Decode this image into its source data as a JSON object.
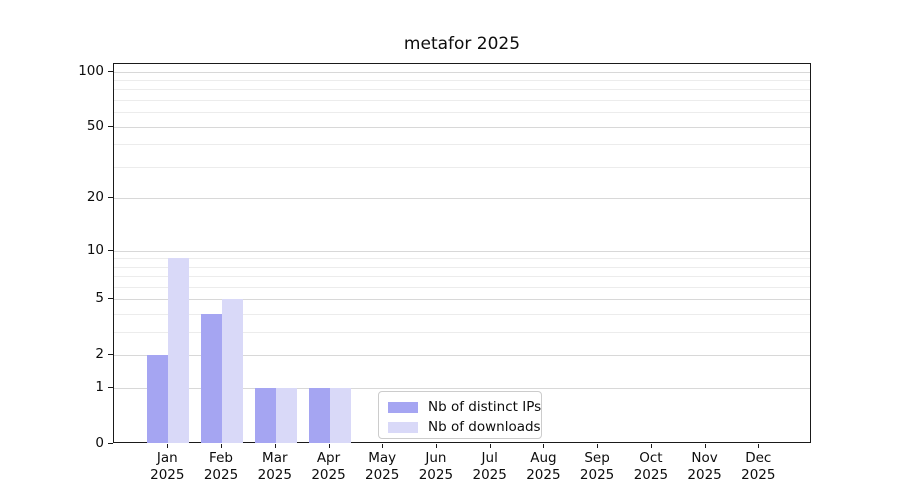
{
  "chart_data": {
    "type": "bar",
    "title": "metafor 2025",
    "categories": [
      "Jan",
      "Feb",
      "Mar",
      "Apr",
      "May",
      "Jun",
      "Jul",
      "Aug",
      "Sep",
      "Oct",
      "Nov",
      "Dec"
    ],
    "x_year_label": "2025",
    "series": [
      {
        "name": "Nb of distinct IPs",
        "color": "#a5a5f2",
        "values": [
          2,
          4,
          1,
          1,
          0,
          0,
          0,
          0,
          0,
          0,
          0,
          0
        ]
      },
      {
        "name": "Nb of downloads",
        "color": "#d9d9f8",
        "values": [
          9,
          5,
          1,
          1,
          0,
          0,
          0,
          0,
          0,
          0,
          0,
          0
        ]
      }
    ],
    "xlabel": "",
    "ylabel": "",
    "yscale": "log1p",
    "ylim": [
      0,
      110
    ],
    "y_ticks": [
      0,
      1,
      2,
      5,
      10,
      20,
      50,
      100
    ],
    "y_minor_gridlines": [
      3,
      4,
      6,
      7,
      8,
      9,
      30,
      40,
      60,
      70,
      80,
      90
    ],
    "grid": "horizontal",
    "legend_position": "inside lower center",
    "colors": {
      "major_grid": "#d8d8d8",
      "minor_grid": "#ececec",
      "axis": "#1a1a1a",
      "text": "#0d0d0d"
    }
  }
}
